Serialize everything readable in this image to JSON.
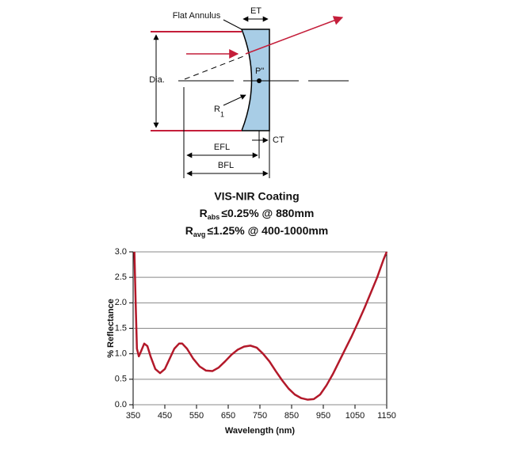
{
  "diagram": {
    "flat_annulus": "Flat Annulus",
    "et": "ET",
    "dia": "Dia.",
    "p": "P\"",
    "r": "R",
    "r_sub": "1",
    "ct": "CT",
    "efl": "EFL",
    "bfl": "BFL"
  },
  "chart_data": {
    "type": "line",
    "title": "VIS-NIR Coating",
    "subtitle_lines": [
      {
        "symbol": "R",
        "subscript": "abs",
        "text": "≤0.25% @ 880mm"
      },
      {
        "symbol": "R",
        "subscript": "avg",
        "text": "≤1.25% @ 400-1000mm"
      }
    ],
    "x_label": "Wavelength (nm)",
    "y_label": "% Reflectance",
    "xlim": [
      350,
      1150
    ],
    "ylim": [
      0,
      3
    ],
    "xticks": [
      350,
      450,
      550,
      650,
      750,
      850,
      950,
      1050,
      1150
    ],
    "yticks": [
      {
        "value": 3,
        "label": "3.0"
      },
      2.5,
      {
        "value": 2,
        "label": "2.0"
      },
      1.5,
      {
        "value": 1,
        "label": "1.0"
      },
      0.5,
      {
        "value": 0,
        "label": "0.0"
      }
    ],
    "grid": true,
    "x": [
      354,
      358,
      362,
      368,
      375,
      385,
      395,
      405,
      420,
      435,
      450,
      465,
      480,
      495,
      505,
      520,
      540,
      560,
      580,
      600,
      620,
      640,
      660,
      680,
      700,
      720,
      740,
      760,
      780,
      800,
      820,
      840,
      860,
      880,
      900,
      920,
      940,
      960,
      980,
      1000,
      1020,
      1040,
      1060,
      1080,
      1100,
      1120,
      1140,
      1150
    ],
    "series": [
      {
        "color": "#b3192a",
        "values": [
          3.0,
          2.0,
          1.1,
          0.95,
          1.05,
          1.2,
          1.15,
          0.95,
          0.7,
          0.62,
          0.7,
          0.9,
          1.1,
          1.2,
          1.2,
          1.1,
          0.9,
          0.75,
          0.67,
          0.66,
          0.73,
          0.85,
          0.98,
          1.08,
          1.14,
          1.16,
          1.12,
          1.0,
          0.85,
          0.66,
          0.48,
          0.32,
          0.2,
          0.13,
          0.1,
          0.11,
          0.2,
          0.38,
          0.6,
          0.85,
          1.1,
          1.35,
          1.62,
          1.9,
          2.2,
          2.5,
          2.85,
          3.0
        ]
      }
    ]
  }
}
